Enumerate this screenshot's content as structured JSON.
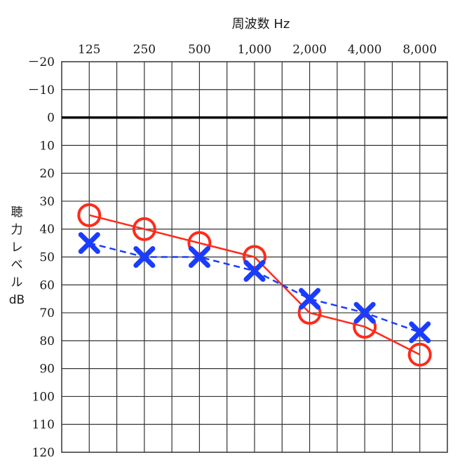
{
  "chart_data": {
    "type": "line",
    "xlabel": "周波数 Hz",
    "ylabel_lines": [
      "聴",
      "力",
      "レ",
      "ベ",
      "ル",
      "dB"
    ],
    "categories": [
      "125",
      "250",
      "500",
      "1,000",
      "2,000",
      "4,000",
      "8,000"
    ],
    "y_ticks": [
      "－20",
      "－10",
      "0",
      "10",
      "20",
      "30",
      "40",
      "50",
      "60",
      "70",
      "80",
      "90",
      "100",
      "110",
      "120"
    ],
    "ylim": [
      -20,
      120
    ],
    "y_inverted": true,
    "grid": true,
    "legend": "none",
    "series": [
      {
        "marker": "circle",
        "line_style": "solid",
        "color": "#ff2a1a",
        "values": [
          35,
          40,
          45,
          50,
          70,
          75,
          85
        ]
      },
      {
        "marker": "cross",
        "line_style": "dashed",
        "color": "#1a3cff",
        "values": [
          45,
          50,
          50,
          55,
          65,
          70,
          77
        ]
      }
    ],
    "reference_line": {
      "y": 0,
      "color": "#000000"
    }
  }
}
